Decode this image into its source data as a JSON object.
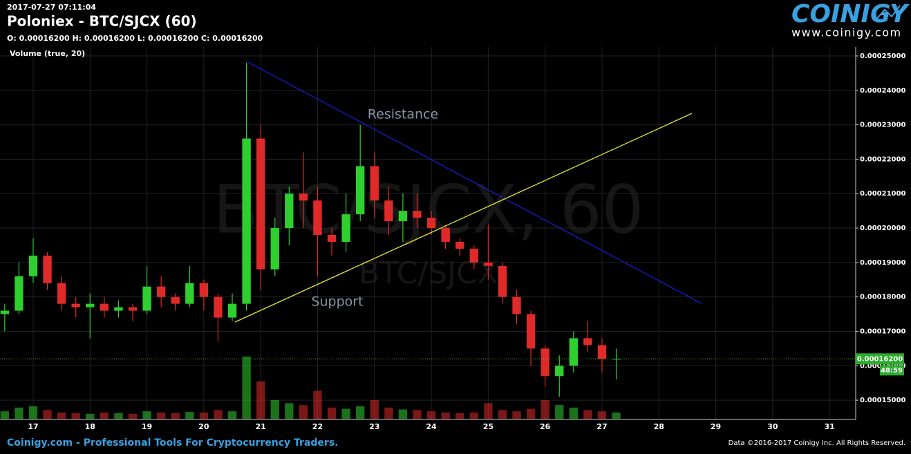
{
  "chart_data": {
    "type": "candlestick",
    "timestamp": "2017-07-27 07:11:04",
    "title": "Poloniex - BTC/SJCX (60)",
    "ohlc_line": "O: 0.00016200 H: 0.00016200 L: 0.00016200 C: 0.00016200",
    "indicator_label": "Volume (true, 20)",
    "watermark": "BTC/SJCX, 60",
    "watermark_small": "BTC/SJCX",
    "logo": "COINIGY",
    "logo_url": "www.coinigy.com",
    "footer_left": "Coinigy.com - Professional Tools For Cryptocurrency Traders.",
    "footer_right": "Data ©2016-2017 Coinigy Inc. All Rights Reserved.",
    "annotations": [
      "Resistance",
      "Support"
    ],
    "trend_lines": [
      {
        "color": "#1a1ad0",
        "x": [
          20.755,
          28.75
        ],
        "y": [
          0.0002484,
          0.0001781
        ]
      },
      {
        "color": "#e6e62e",
        "x": [
          20.55,
          28.58
        ],
        "y": [
          0.0001727,
          0.0002333
        ]
      }
    ],
    "last_price": {
      "value": 0.000162,
      "label": "0.00016200"
    },
    "countdown": "48:59",
    "up_color": "#2fcf2f",
    "down_color": "#e02a2a",
    "grid": true,
    "xlim": [
      16.417,
      31.46
    ],
    "xticks": [
      17,
      18,
      19,
      20,
      21,
      22,
      23,
      24,
      25,
      26,
      27,
      28,
      29,
      30,
      31
    ],
    "ylim": [
      0.0001444,
      0.0002526
    ],
    "yticks": [
      {
        "value": 0.00015,
        "label": "0.00015000"
      },
      {
        "value": 0.00016,
        "label": "0.00016000"
      },
      {
        "value": 0.00017,
        "label": "0.00017000"
      },
      {
        "value": 0.00018,
        "label": "0.00018000"
      },
      {
        "value": 0.00019,
        "label": "0.00019000"
      },
      {
        "value": 0.0002,
        "label": "0.00020000"
      },
      {
        "value": 0.00021,
        "label": "0.00021000"
      },
      {
        "value": 0.00022,
        "label": "0.00022000"
      },
      {
        "value": 0.00023,
        "label": "0.00023000"
      },
      {
        "value": 0.00024,
        "label": "0.00024000"
      },
      {
        "value": 0.00025,
        "label": "0.00025000"
      }
    ],
    "x": [
      16.5,
      16.75,
      17,
      17.25,
      17.5,
      17.75,
      18,
      18.25,
      18.5,
      18.75,
      19,
      19.25,
      19.5,
      19.75,
      20,
      20.25,
      20.5,
      20.75,
      21,
      21.25,
      21.5,
      21.75,
      22,
      22.25,
      22.5,
      22.75,
      23,
      23.25,
      23.5,
      23.75,
      24,
      24.25,
      24.5,
      24.75,
      25,
      25.25,
      25.5,
      25.75,
      26,
      26.25,
      26.5,
      26.75,
      27,
      27.25
    ],
    "open": [
      0.000175,
      0.000176,
      0.000186,
      0.000192,
      0.000184,
      0.000178,
      0.000177,
      0.000178,
      0.000176,
      0.000177,
      0.000176,
      0.000183,
      0.00018,
      0.000178,
      0.000184,
      0.00018,
      0.000174,
      0.000178,
      0.000226,
      0.000188,
      0.0002,
      0.00021,
      0.000208,
      0.000198,
      0.000196,
      0.000204,
      0.000218,
      0.000208,
      0.000202,
      0.000205,
      0.000203,
      0.0002,
      0.000196,
      0.000194,
      0.00019,
      0.000189,
      0.00018,
      0.000175,
      0.000165,
      0.000157,
      0.00016,
      0.000168,
      0.000166,
      0.000162
    ],
    "high": [
      0.000178,
      0.00019,
      0.000197,
      0.000193,
      0.000186,
      0.00018,
      0.000181,
      0.00018,
      0.000179,
      0.000178,
      0.000189,
      0.000186,
      0.000181,
      0.000189,
      0.000185,
      0.000181,
      0.000181,
      0.000248,
      0.00023,
      0.000203,
      0.000212,
      0.000222,
      0.000212,
      0.0002,
      0.00021,
      0.00023,
      0.000222,
      0.000212,
      0.00021,
      0.00021,
      0.000205,
      0.000201,
      0.000197,
      0.000195,
      0.000201,
      0.00019,
      0.000182,
      0.000176,
      0.000166,
      0.000163,
      0.00017,
      0.000173,
      0.000168,
      0.000165
    ],
    "low": [
      0.00017,
      0.000175,
      0.000184,
      0.000182,
      0.000176,
      0.000174,
      0.000168,
      0.000174,
      0.000174,
      0.000173,
      0.000175,
      0.000177,
      0.000176,
      0.000177,
      0.000176,
      0.000167,
      0.000173,
      0.000176,
      0.000182,
      0.000186,
      0.000195,
      0.0002,
      0.000186,
      0.000192,
      0.000193,
      0.000202,
      0.000203,
      0.000198,
      0.000196,
      0.0002,
      0.000198,
      0.000194,
      0.000192,
      0.000188,
      0.000185,
      0.000178,
      0.000172,
      0.00016,
      0.000154,
      0.000151,
      0.000158,
      0.000164,
      0.000158,
      0.000156
    ],
    "close": [
      0.000176,
      0.000186,
      0.000192,
      0.000184,
      0.000178,
      0.000177,
      0.000178,
      0.000176,
      0.000177,
      0.000176,
      0.000183,
      0.00018,
      0.000178,
      0.000184,
      0.00018,
      0.000174,
      0.000178,
      0.000226,
      0.000188,
      0.0002,
      0.00021,
      0.000208,
      0.000198,
      0.000196,
      0.000204,
      0.000218,
      0.000208,
      0.000202,
      0.000205,
      0.000203,
      0.0002,
      0.000196,
      0.000194,
      0.00019,
      0.000189,
      0.00018,
      0.000175,
      0.000165,
      0.000157,
      0.00016,
      0.000168,
      0.000166,
      0.000162,
      0.000162
    ],
    "volume": [
      12,
      18,
      20,
      14,
      10,
      9,
      8,
      10,
      9,
      8,
      12,
      10,
      9,
      11,
      10,
      14,
      12,
      100,
      60,
      30,
      25,
      22,
      45,
      18,
      16,
      20,
      30,
      18,
      15,
      14,
      12,
      10,
      9,
      10,
      25,
      14,
      12,
      16,
      30,
      22,
      18,
      14,
      12,
      10
    ]
  }
}
